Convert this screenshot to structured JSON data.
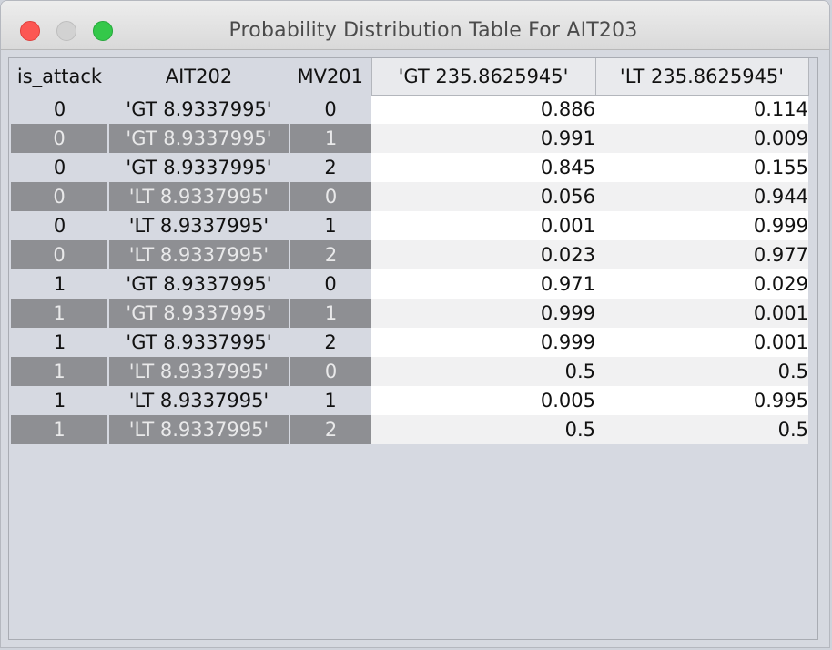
{
  "window": {
    "title": "Probability Distribution Table For AIT203"
  },
  "table": {
    "headers": [
      "is_attack",
      "AIT202",
      "MV201",
      "'GT 235.8625945'",
      "'LT 235.8625945'"
    ],
    "rows": [
      [
        "0",
        "'GT 8.9337995'",
        "0",
        "0.886",
        "0.114"
      ],
      [
        "0",
        "'GT 8.9337995'",
        "1",
        "0.991",
        "0.009"
      ],
      [
        "0",
        "'GT 8.9337995'",
        "2",
        "0.845",
        "0.155"
      ],
      [
        "0",
        "'LT 8.9337995'",
        "0",
        "0.056",
        "0.944"
      ],
      [
        "0",
        "'LT 8.9337995'",
        "1",
        "0.001",
        "0.999"
      ],
      [
        "0",
        "'LT 8.9337995'",
        "2",
        "0.023",
        "0.977"
      ],
      [
        "1",
        "'GT 8.9337995'",
        "0",
        "0.971",
        "0.029"
      ],
      [
        "1",
        "'GT 8.9337995'",
        "1",
        "0.999",
        "0.001"
      ],
      [
        "1",
        "'GT 8.9337995'",
        "2",
        "0.999",
        "0.001"
      ],
      [
        "1",
        "'LT 8.9337995'",
        "0",
        "0.5",
        "0.5"
      ],
      [
        "1",
        "'LT 8.9337995'",
        "1",
        "0.005",
        "0.995"
      ],
      [
        "1",
        "'LT 8.9337995'",
        "2",
        "0.5",
        "0.5"
      ]
    ]
  },
  "colors": {
    "close": "#fc5753",
    "minimize": "#d2d2d2",
    "zoom": "#34c84a",
    "row_highlight": "#8e8f93"
  }
}
